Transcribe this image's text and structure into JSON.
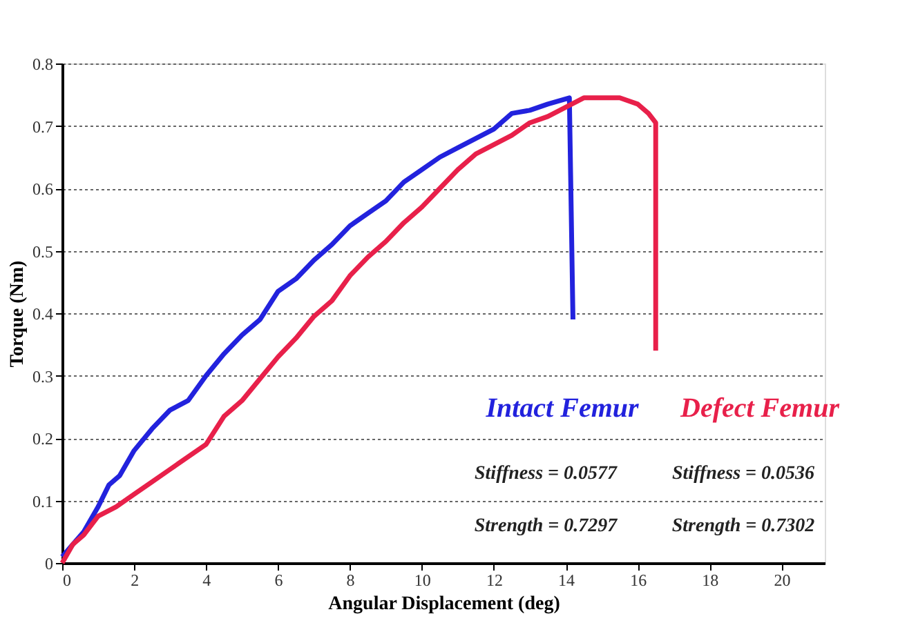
{
  "chart_data": {
    "type": "line",
    "xlabel": "Angular Displacement (deg)",
    "ylabel": "Torque (Nm)",
    "xlim": [
      0,
      21.2
    ],
    "xticks": [
      0,
      2,
      4,
      6,
      8,
      10,
      12,
      14,
      16,
      18,
      20
    ],
    "ylim": [
      0,
      0.8
    ],
    "yticks": [
      0,
      0.1,
      0.2,
      0.3,
      0.4,
      0.5,
      0.6,
      0.7,
      0.8
    ],
    "grid": "y",
    "legend": false,
    "marker": "none",
    "line_style": "solid",
    "series": [
      {
        "name": "Intact Femur",
        "color": "#2222dd",
        "x": [
          0,
          0.3,
          0.6,
          1,
          1.3,
          1.6,
          2,
          2.5,
          3,
          3.5,
          4,
          4.5,
          5,
          5.5,
          6,
          6.5,
          7,
          7.5,
          8,
          8.5,
          9,
          9.5,
          10,
          10.5,
          11,
          11.5,
          12,
          12.5,
          13,
          13.5,
          14.1,
          14.2
        ],
        "values": [
          0.01,
          0.03,
          0.05,
          0.09,
          0.125,
          0.14,
          0.18,
          0.215,
          0.245,
          0.26,
          0.3,
          0.335,
          0.365,
          0.39,
          0.435,
          0.455,
          0.485,
          0.51,
          0.54,
          0.56,
          0.58,
          0.61,
          0.63,
          0.65,
          0.665,
          0.68,
          0.695,
          0.72,
          0.725,
          0.735,
          0.745,
          0.39
        ]
      },
      {
        "name": "Defect Femur",
        "color": "#e8204a",
        "x": [
          0,
          0.3,
          0.6,
          1,
          1.5,
          2,
          2.5,
          3,
          3.5,
          4,
          4.5,
          5,
          5.5,
          6,
          6.5,
          7,
          7.5,
          8,
          8.5,
          9,
          9.5,
          10,
          10.5,
          11,
          11.5,
          12,
          12.5,
          13,
          13.5,
          14,
          14.5,
          15.5,
          16,
          16.3,
          16.5,
          16.5
        ],
        "values": [
          0,
          0.03,
          0.045,
          0.075,
          0.09,
          0.11,
          0.13,
          0.15,
          0.17,
          0.19,
          0.235,
          0.26,
          0.295,
          0.33,
          0.36,
          0.395,
          0.42,
          0.46,
          0.49,
          0.515,
          0.545,
          0.57,
          0.6,
          0.63,
          0.655,
          0.67,
          0.685,
          0.705,
          0.715,
          0.73,
          0.745,
          0.745,
          0.735,
          0.72,
          0.705,
          0.34
        ]
      }
    ],
    "annotations": [
      "Stiffness = 0.0577",
      "Strength = 0.7297",
      "Stiffness = 0.0536",
      "Strength = 0.7302"
    ]
  }
}
